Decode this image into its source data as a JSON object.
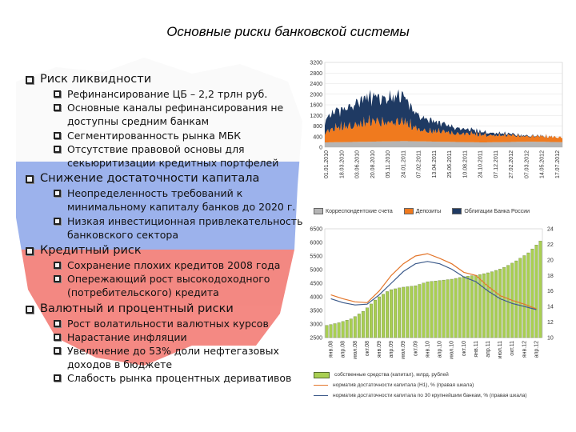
{
  "title": "Основные риски банковской системы",
  "sections": [
    {
      "label": "Риск ликвидности",
      "items": [
        "Рефинансирование ЦБ – 2,2 трлн руб.",
        "Основные каналы рефинансирования не доступны средним банкам",
        "Сегментированность рынка МБК",
        "Отсутствие правовой основы для секьюритизации кредитных портфелей"
      ]
    },
    {
      "label": "Снижение достаточности капитала",
      "items": [
        "Неопределенность требований к минимальному капиталу банков до 2020 г.",
        "Низкая инвестиционная привлекательность банковского сектора"
      ]
    },
    {
      "label": "Кредитный риск",
      "items": [
        "Сохранение плохих кредитов 2008 года",
        "Опережающий рост высокодоходного (потребительского) кредита"
      ]
    },
    {
      "label": "Валютный и процентный риски",
      "items": [
        "Рост волатильности валютных курсов",
        "Нарастание инфляции",
        "Увеличение до 53% доли нефтегазовых доходов в бюджете",
        "Слабость рынка процентных деривативов"
      ]
    }
  ],
  "chart_data": [
    {
      "type": "area",
      "y_ticks": [
        "3200",
        "2800",
        "2400",
        "2000",
        "1600",
        "1200",
        "800",
        "400",
        "0"
      ],
      "ylim": [
        0,
        3200
      ],
      "x_tick_labels": [
        "01.01.2010",
        "18.03.2010",
        "03.06.2010",
        "20.08.2010",
        "05.11.2010",
        "24.01.2011",
        "07.02.2011",
        "13.04.2011",
        "25.06.2011",
        "10.08.2011",
        "24.10.2011",
        "07.12.2011",
        "27.02.2012",
        "07.03.2012",
        "14.05.2012",
        "17.07.2012"
      ],
      "series": [
        {
          "name": "Корреспондентские счета",
          "color": "#b5b5b5",
          "values": [
            180,
            190,
            200,
            210,
            220,
            230,
            220,
            210,
            200,
            190,
            180,
            190,
            200,
            210,
            200,
            190
          ]
        },
        {
          "name": "Депозиты",
          "color": "#f07a1e",
          "values": [
            500,
            750,
            900,
            950,
            1000,
            900,
            600,
            500,
            450,
            420,
            380,
            350,
            300,
            280,
            260,
            250
          ]
        },
        {
          "name": "Облигации Банка России",
          "color": "#1f3a63",
          "values": [
            600,
            900,
            1100,
            1250,
            1300,
            1200,
            700,
            450,
            350,
            200,
            150,
            100,
            60,
            30,
            10,
            0
          ]
        }
      ]
    },
    {
      "type": "bar",
      "categories": [
        "янв.08",
        "апр.08",
        "июл.08",
        "окт.08",
        "янв.09",
        "апр.09",
        "июл.09",
        "окт.09",
        "янв.10",
        "апр.10",
        "июл.10",
        "окт.10",
        "янв.11",
        "апр.11",
        "июл.11",
        "окт.11",
        "янв.12",
        "апр.12"
      ],
      "left_ticks": [
        "6500",
        "6000",
        "5500",
        "5000",
        "4500",
        "4000",
        "3500",
        "3000",
        "2500"
      ],
      "right_ticks": [
        "24",
        "22",
        "20",
        "18",
        "16",
        "14",
        "12",
        "10"
      ],
      "ylim_left": [
        2500,
        6500
      ],
      "ylim_right": [
        10,
        24
      ],
      "series": [
        {
          "name": "собственные средства (капитал), млрд. рублей",
          "color": "#a9cf52",
          "axis": "left",
          "values": [
            2950,
            3050,
            3200,
            3500,
            3950,
            4250,
            4350,
            4400,
            4550,
            4600,
            4650,
            4750,
            4800,
            4900,
            5050,
            5300,
            5600,
            6050
          ]
        },
        {
          "name": "норматив достаточности капитала (Н1), % (правая шкала)",
          "color": "#e3762b",
          "axis": "right",
          "values": [
            15.5,
            15.0,
            14.6,
            14.5,
            16.0,
            18.0,
            19.5,
            20.5,
            20.8,
            20.2,
            19.5,
            18.4,
            18.0,
            16.6,
            15.4,
            14.8,
            14.3,
            13.7
          ]
        },
        {
          "name": "норматив достаточности капитала по 30 крупнейшим банкам, % (правая шкала)",
          "color": "#3c5a8a",
          "axis": "right",
          "values": [
            15.0,
            14.5,
            14.2,
            14.3,
            15.5,
            17.0,
            18.5,
            19.5,
            19.8,
            19.5,
            18.8,
            17.8,
            17.2,
            16.0,
            15.0,
            14.4,
            14.0,
            13.6
          ]
        }
      ]
    }
  ],
  "colors": {
    "russia_blue": "#4d6fd6",
    "russia_red": "#e8231f",
    "map_white": "#f4f4f4"
  }
}
